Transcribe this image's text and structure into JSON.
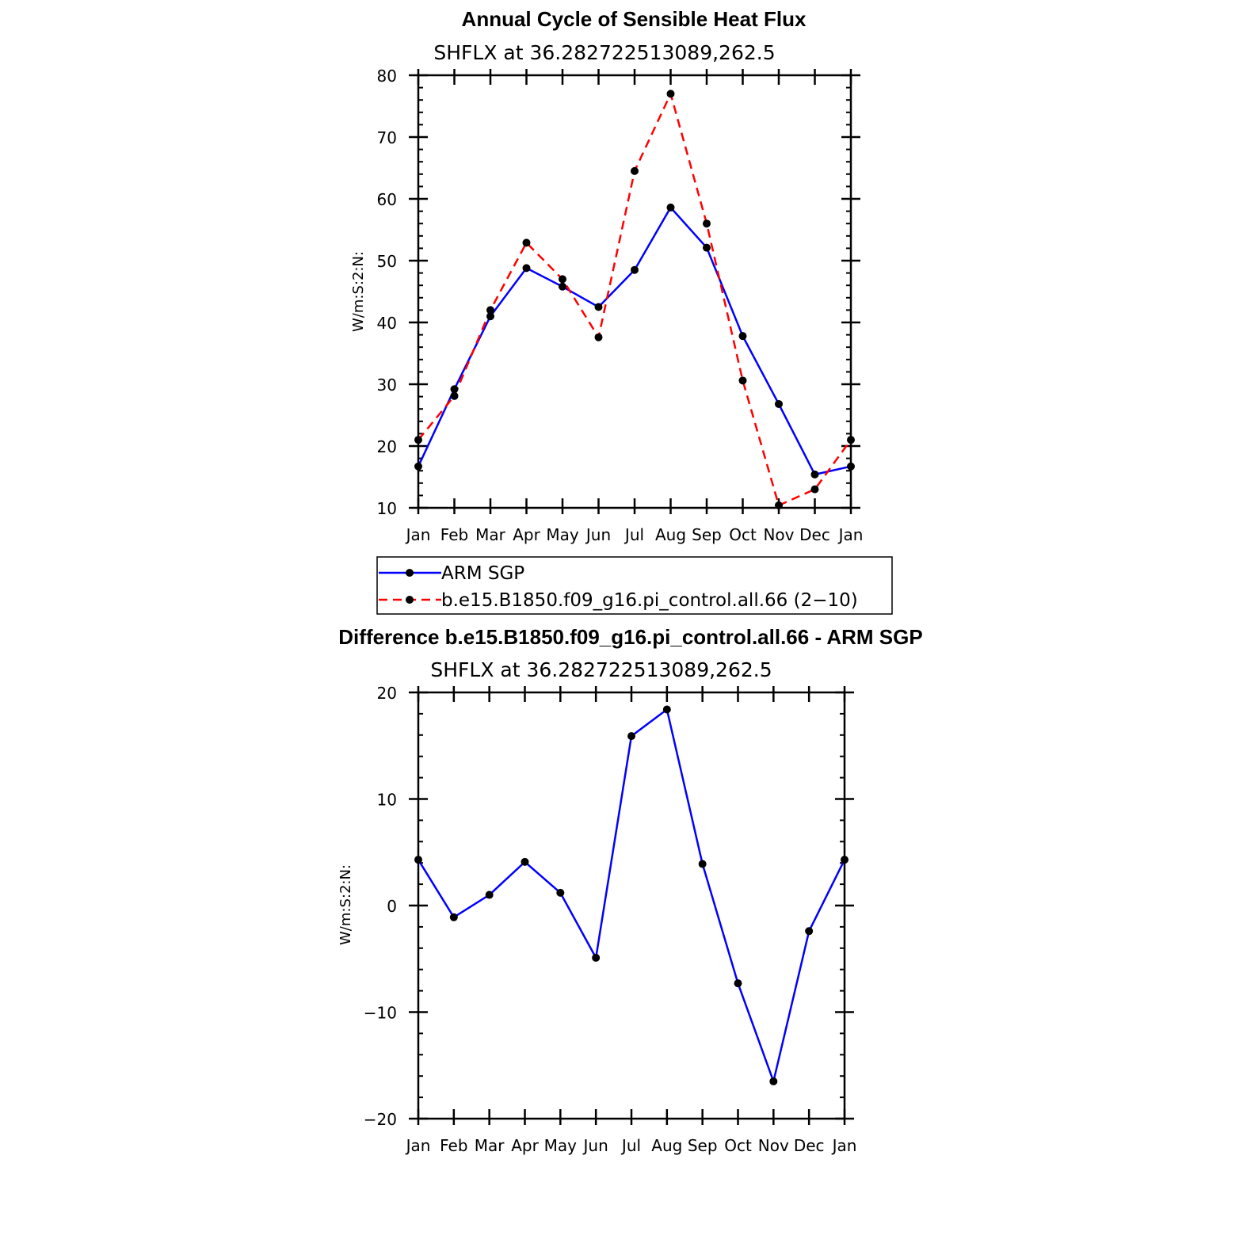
{
  "chart_data": [
    {
      "type": "line",
      "title": "Annual Cycle of Sensible Heat Flux",
      "subtitle": "SHFLX at 36.282722513089,262.5",
      "ylabel": "W/m:S:2:N:",
      "xlabel": "",
      "categories": [
        "Jan",
        "Feb",
        "Mar",
        "Apr",
        "May",
        "Jun",
        "Jul",
        "Aug",
        "Sep",
        "Oct",
        "Nov",
        "Dec",
        "Jan"
      ],
      "ylim": [
        10,
        80
      ],
      "yticks": [
        "10",
        "20",
        "30",
        "40",
        "50",
        "60",
        "70",
        "80"
      ],
      "series": [
        {
          "name": "ARM SGP",
          "color": "#0000ff",
          "dash": "solid",
          "values": [
            16.7,
            29.2,
            41.0,
            48.8,
            45.8,
            42.5,
            48.5,
            58.6,
            52.1,
            37.8,
            26.8,
            15.4,
            16.7
          ]
        },
        {
          "name": "b.e15.B1850.f09_g16.pi_control.all.66 (2−10)",
          "color": "#ff0000",
          "dash": "dashed",
          "values": [
            21.0,
            28.1,
            42.0,
            52.9,
            47.0,
            37.6,
            64.5,
            77.0,
            56.0,
            30.6,
            10.4,
            13.0,
            21.0
          ]
        }
      ],
      "legend": {
        "position": "below",
        "entries": [
          "ARM SGP",
          "b.e15.B1850.f09_g16.pi_control.all.66 (2−10)"
        ]
      }
    },
    {
      "type": "line",
      "title": "Difference b.e15.B1850.f09_g16.pi_control.all.66 - ARM SGP",
      "subtitle": "SHFLX at 36.282722513089,262.5",
      "ylabel": "W/m:S:2:N:",
      "xlabel": "",
      "categories": [
        "Jan",
        "Feb",
        "Mar",
        "Apr",
        "May",
        "Jun",
        "Jul",
        "Aug",
        "Sep",
        "Oct",
        "Nov",
        "Dec",
        "Jan"
      ],
      "ylim": [
        -20,
        20
      ],
      "yticks": [
        "−20",
        "−10",
        "0",
        "10",
        "20"
      ],
      "series": [
        {
          "name": "Difference",
          "color": "#0000ff",
          "dash": "solid",
          "values": [
            4.3,
            -1.1,
            1.0,
            4.1,
            1.2,
            -4.9,
            15.9,
            18.4,
            3.9,
            -7.3,
            -16.5,
            -2.4,
            4.3
          ]
        }
      ]
    }
  ]
}
